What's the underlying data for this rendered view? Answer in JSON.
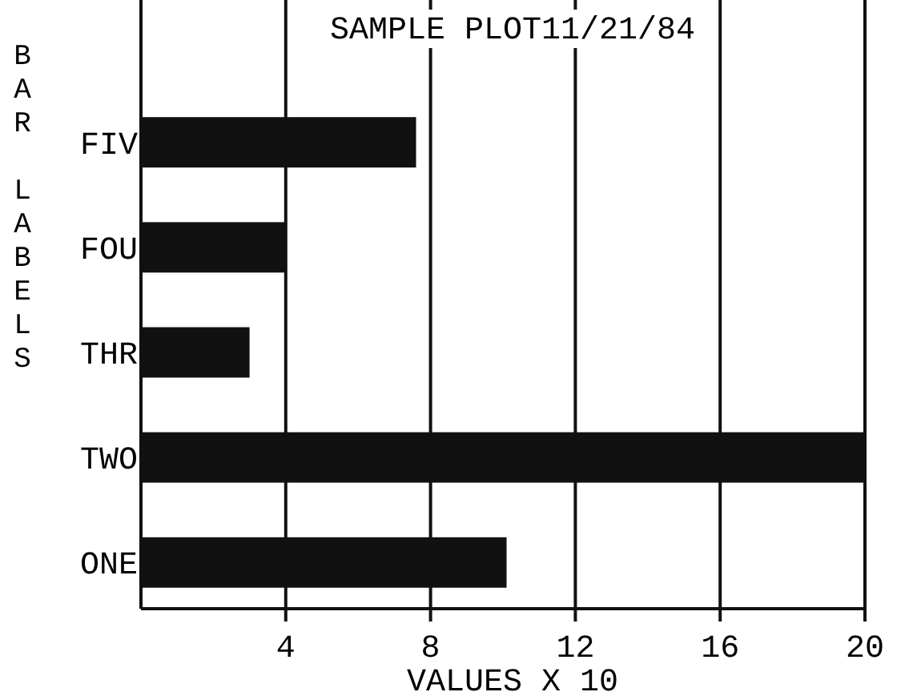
{
  "chart_data": {
    "type": "bar",
    "orientation": "horizontal",
    "title": "SAMPLE PLOT11/21/84",
    "xlabel": "VALUES X 10",
    "ylabel": "BAR LABELS",
    "categories": [
      "FIV",
      "FOU",
      "THR",
      "TWO",
      "ONE"
    ],
    "values": [
      7.6,
      4,
      3,
      20,
      10.1
    ],
    "color": "#111111",
    "xlim": [
      0,
      20
    ],
    "xticks": [
      4,
      8,
      12,
      16,
      20
    ],
    "grid": "x"
  }
}
